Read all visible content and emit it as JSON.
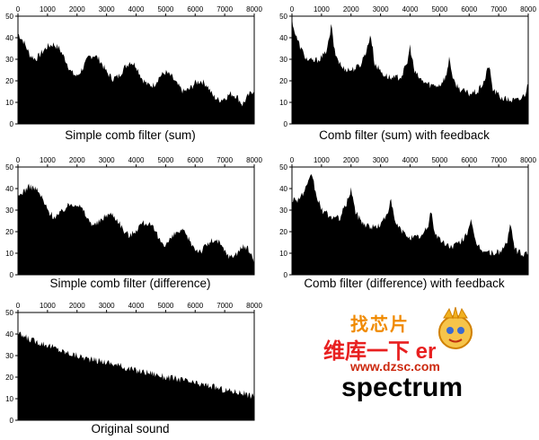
{
  "chart_data": [
    {
      "type": "area",
      "title": "Simple comb filter (sum)",
      "x_ticks": [
        0,
        1000,
        2000,
        3000,
        4000,
        5000,
        6000,
        7000,
        8000
      ],
      "y_ticks": [
        0,
        10,
        20,
        30,
        40,
        50
      ],
      "xlim": [
        0,
        8000
      ],
      "ylim": [
        0,
        50
      ],
      "series": [
        {
          "x": [
            0,
            200,
            400,
            600,
            800,
            1000,
            1200,
            1400,
            1600,
            1800,
            2000,
            2200,
            2400,
            2600,
            2800,
            3000,
            3200,
            3400,
            3600,
            3800,
            4000,
            4200,
            4400,
            4600,
            4800,
            5000,
            5200,
            5400,
            5600,
            5800,
            6000,
            6200,
            6400,
            6600,
            6800,
            7000,
            7200,
            7400,
            7600,
            7800,
            8000
          ],
          "values": [
            42,
            38,
            32,
            30,
            33,
            36,
            37,
            35,
            30,
            24,
            22,
            26,
            31,
            32,
            29,
            24,
            21,
            22,
            26,
            29,
            27,
            21,
            18,
            18,
            22,
            24,
            22,
            18,
            15,
            16,
            19,
            20,
            18,
            13,
            11,
            12,
            14,
            13,
            9,
            13,
            16
          ]
        }
      ]
    },
    {
      "type": "area",
      "title": "Comb filter (sum) with feedback",
      "x_ticks": [
        0,
        1000,
        2000,
        3000,
        4000,
        5000,
        6000,
        7000,
        8000
      ],
      "y_ticks": [
        0,
        10,
        20,
        30,
        40,
        50
      ],
      "xlim": [
        0,
        8000
      ],
      "ylim": [
        0,
        50
      ],
      "series": [
        {
          "x": [
            0,
            100,
            300,
            500,
            700,
            900,
            1100,
            1250,
            1330,
            1450,
            1700,
            2000,
            2300,
            2550,
            2660,
            2800,
            3100,
            3400,
            3700,
            3900,
            4000,
            4150,
            4400,
            4700,
            5000,
            5250,
            5330,
            5450,
            5700,
            6000,
            6300,
            6550,
            6660,
            6800,
            7100,
            7400,
            7700,
            7900,
            8000
          ],
          "values": [
            49,
            42,
            35,
            30,
            29,
            30,
            32,
            38,
            46,
            33,
            26,
            25,
            27,
            35,
            42,
            28,
            23,
            21,
            22,
            28,
            36,
            24,
            20,
            18,
            18,
            23,
            32,
            20,
            16,
            14,
            15,
            21,
            28,
            16,
            12,
            11,
            11,
            14,
            19
          ]
        }
      ]
    },
    {
      "type": "area",
      "title": "Simple comb filter (difference)",
      "x_ticks": [
        0,
        1000,
        2000,
        3000,
        4000,
        5000,
        6000,
        7000,
        8000
      ],
      "y_ticks": [
        0,
        10,
        20,
        30,
        40,
        50
      ],
      "xlim": [
        0,
        8000
      ],
      "ylim": [
        0,
        50
      ],
      "series": [
        {
          "x": [
            0,
            200,
            400,
            600,
            800,
            1000,
            1200,
            1400,
            1600,
            1800,
            2000,
            2200,
            2400,
            2600,
            2800,
            3000,
            3200,
            3400,
            3600,
            3800,
            4000,
            4200,
            4400,
            4600,
            4800,
            5000,
            5200,
            5400,
            5600,
            5800,
            6000,
            6200,
            6400,
            6600,
            6800,
            7000,
            7200,
            7400,
            7600,
            7800,
            8000
          ],
          "values": [
            36,
            39,
            41,
            40,
            36,
            30,
            27,
            28,
            31,
            33,
            33,
            30,
            25,
            23,
            25,
            28,
            28,
            25,
            20,
            18,
            21,
            24,
            24,
            21,
            16,
            14,
            17,
            20,
            20,
            16,
            12,
            11,
            14,
            16,
            15,
            11,
            8,
            10,
            13,
            12,
            6
          ]
        }
      ]
    },
    {
      "type": "area",
      "title": "Comb filter (difference) with feedback",
      "x_ticks": [
        0,
        1000,
        2000,
        3000,
        4000,
        5000,
        6000,
        7000,
        8000
      ],
      "y_ticks": [
        0,
        10,
        20,
        30,
        40,
        50
      ],
      "xlim": [
        0,
        8000
      ],
      "ylim": [
        0,
        50
      ],
      "series": [
        {
          "x": [
            0,
            200,
            400,
            550,
            680,
            800,
            1000,
            1300,
            1600,
            1850,
            2000,
            2150,
            2400,
            2700,
            3000,
            3200,
            3350,
            3500,
            3800,
            4100,
            4400,
            4600,
            4700,
            4850,
            5100,
            5400,
            5700,
            5950,
            6050,
            6200,
            6500,
            6800,
            7100,
            7300,
            7400,
            7550,
            7800,
            8000
          ],
          "values": [
            35,
            35,
            38,
            42,
            47,
            38,
            30,
            27,
            26,
            33,
            40,
            29,
            24,
            22,
            23,
            28,
            34,
            24,
            19,
            17,
            18,
            22,
            30,
            19,
            15,
            13,
            15,
            20,
            26,
            15,
            11,
            10,
            11,
            16,
            23,
            12,
            9,
            11
          ]
        }
      ]
    },
    {
      "type": "area",
      "title": "Original sound",
      "x_ticks": [
        0,
        1000,
        2000,
        3000,
        4000,
        5000,
        6000,
        7000,
        8000
      ],
      "y_ticks": [
        0,
        10,
        20,
        30,
        40,
        50
      ],
      "xlim": [
        0,
        8000
      ],
      "ylim": [
        0,
        50
      ],
      "series": [
        {
          "x": [
            0,
            500,
            1000,
            1500,
            2000,
            2500,
            3000,
            3500,
            4000,
            4500,
            5000,
            5500,
            6000,
            6500,
            7000,
            7500,
            8000
          ],
          "values": [
            40,
            37,
            35,
            32,
            30,
            28,
            27,
            25,
            23,
            22,
            20,
            19,
            17,
            16,
            14,
            13,
            11
          ]
        }
      ]
    }
  ],
  "watermark": {
    "logo_text": "找芯片",
    "row2_text": "维库一下 er",
    "url": "www.dzsc.com",
    "big_text": "spectrum"
  }
}
